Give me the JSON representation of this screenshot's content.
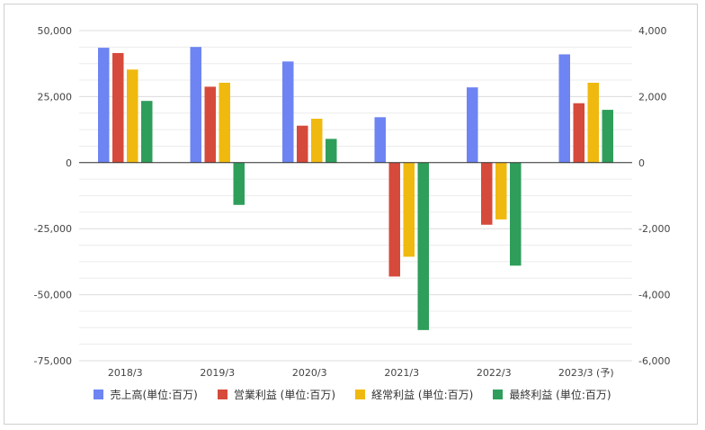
{
  "chart_data": {
    "type": "bar",
    "categories": [
      "2018/3",
      "2019/3",
      "2020/3",
      "2021/3",
      "2022/3",
      "2023/3 (予)"
    ],
    "series": [
      {
        "name": "売上高(単位:百万)",
        "axis": "left",
        "color": "#6d84f2",
        "values": [
          43500,
          43800,
          38300,
          17200,
          28500,
          41000
        ]
      },
      {
        "name": "営業利益 (単位:百万)",
        "axis": "right",
        "color": "#d64a3b",
        "values": [
          3320,
          2300,
          1120,
          -3450,
          -1880,
          1800
        ]
      },
      {
        "name": "経常利益 (単位:百万)",
        "axis": "right",
        "color": "#f0b90f",
        "values": [
          2820,
          2420,
          1330,
          -2850,
          -1720,
          2420
        ]
      },
      {
        "name": "最終利益 (単位:百万)",
        "axis": "right",
        "color": "#2f9e5b",
        "values": [
          1870,
          -1280,
          720,
          -5070,
          -3120,
          1600
        ]
      }
    ],
    "y_left": {
      "ylim": [
        -75000,
        50000
      ],
      "ticks": [
        "50,000",
        "25,000",
        "0",
        "-25,000",
        "-50,000",
        "-75,000"
      ]
    },
    "y_right": {
      "ylim": [
        -6000,
        4000
      ],
      "ticks": [
        "4,000",
        "2,000",
        "0",
        "-2,000",
        "-4,000",
        "-6,000"
      ]
    },
    "grid": true,
    "legend_position": "bottom"
  }
}
